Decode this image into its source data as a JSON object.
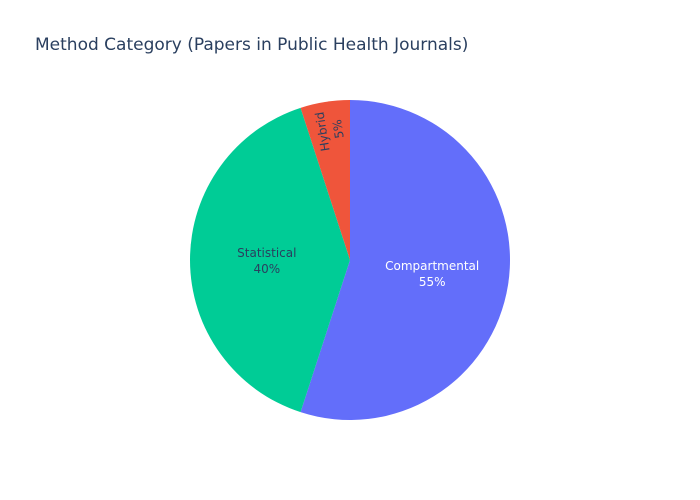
{
  "chart_data": {
    "type": "pie",
    "title": "Method Category (Papers in Public Health Journals)",
    "labels": [
      "Compartmental",
      "Statistical",
      "Hybrid"
    ],
    "values": [
      55,
      40,
      5
    ],
    "percent_labels": [
      "55%",
      "40%",
      "5%"
    ],
    "colors": [
      "#636efa",
      "#00cc96",
      "#ef553b"
    ],
    "label_colors": [
      "#ffffff",
      "#2a3f5f",
      "#2a3f5f"
    ],
    "direction": "clockwise",
    "start": "top",
    "legend": false
  }
}
